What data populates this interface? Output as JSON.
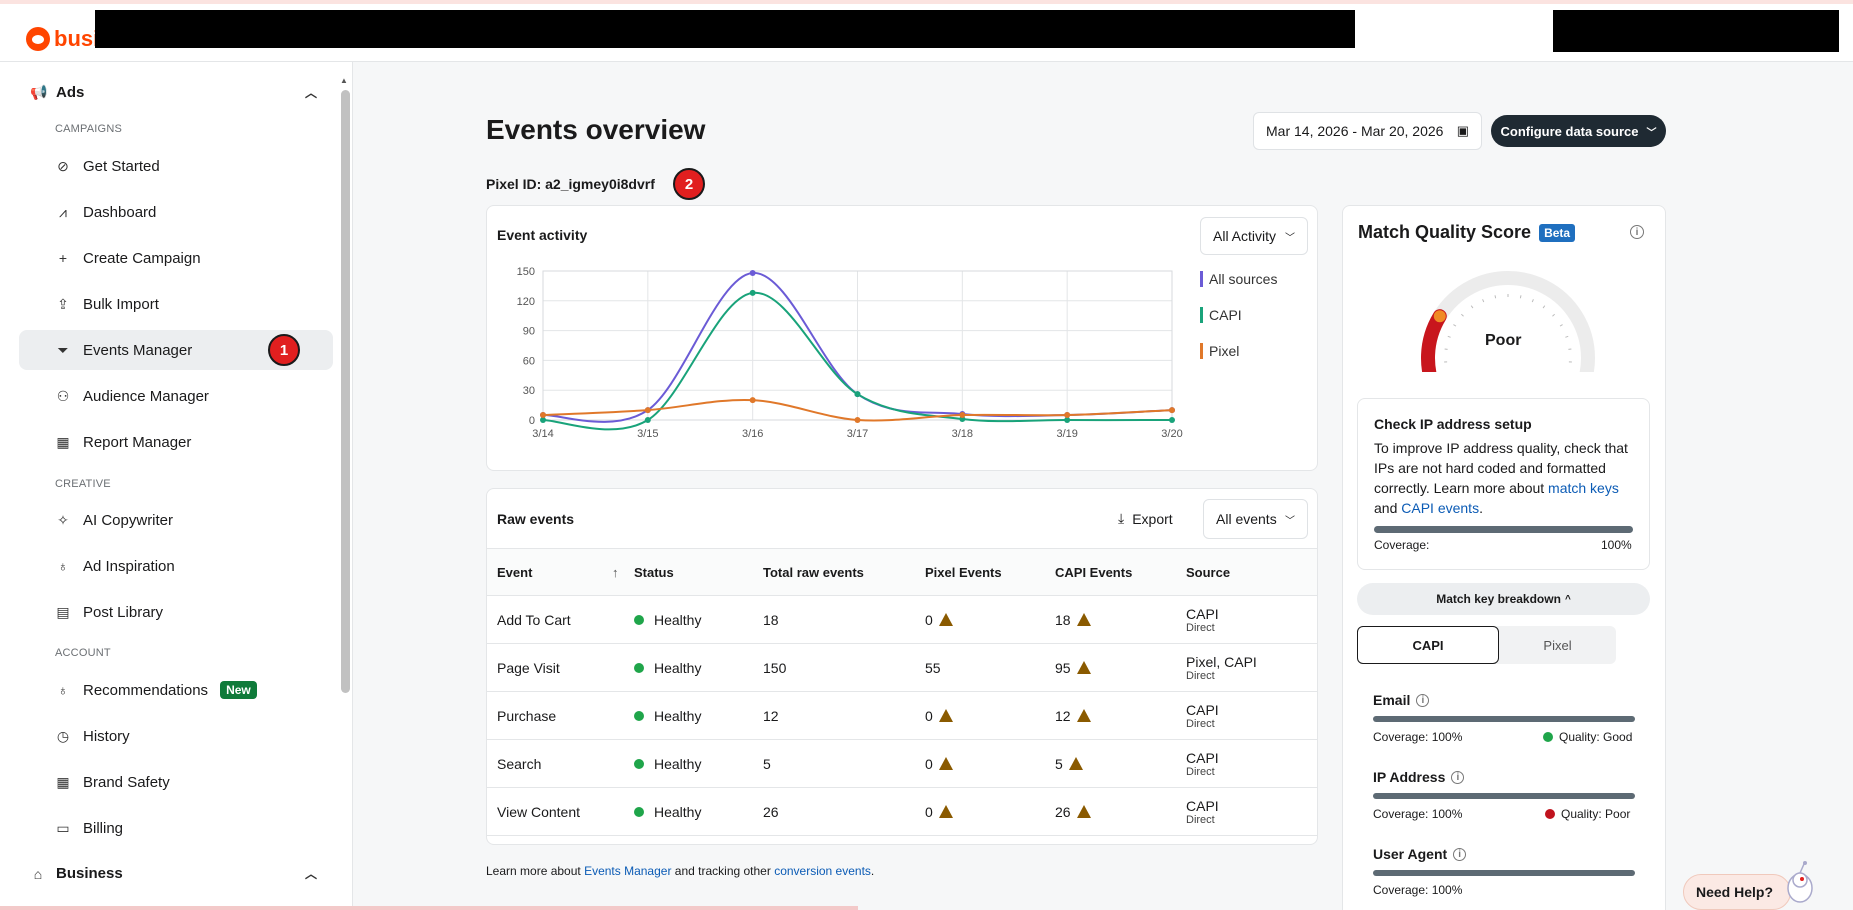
{
  "brand": {
    "logo_text": "business"
  },
  "sidebar": {
    "ads_section": "Ads",
    "business_section": "Business",
    "campaigns_cat": "CAMPAIGNS",
    "creative_cat": "CREATIVE",
    "account_cat": "ACCOUNT",
    "items": [
      {
        "label": "Get Started",
        "icon": "compass-icon"
      },
      {
        "label": "Dashboard",
        "icon": "chart-icon"
      },
      {
        "label": "Create Campaign",
        "icon": "plus-icon"
      },
      {
        "label": "Bulk Import",
        "icon": "upload-icon"
      },
      {
        "label": "Events Manager",
        "icon": "funnel-icon",
        "active": true
      },
      {
        "label": "Audience Manager",
        "icon": "people-icon"
      },
      {
        "label": "Report Manager",
        "icon": "table-icon"
      },
      {
        "label": "AI Copywriter",
        "icon": "sparkle-icon"
      },
      {
        "label": "Ad Inspiration",
        "icon": "bulb-icon"
      },
      {
        "label": "Post Library",
        "icon": "library-icon"
      },
      {
        "label": "Recommendations",
        "icon": "bulb-icon",
        "badge": "New"
      },
      {
        "label": "History",
        "icon": "clock-icon"
      },
      {
        "label": "Brand Safety",
        "icon": "grid-icon"
      },
      {
        "label": "Billing",
        "icon": "card-icon"
      }
    ]
  },
  "markers": {
    "one": "1",
    "two": "2"
  },
  "header": {
    "title": "Events overview",
    "pixel_id": "Pixel ID: a2_igmey0i8dvrf",
    "date_range": "Mar 14, 2026 - Mar 20, 2026",
    "configure_label": "Configure data source"
  },
  "activity": {
    "title": "Event activity",
    "filter": "All Activity"
  },
  "chart_data": {
    "type": "line",
    "title": "Event activity",
    "x": [
      "3/14",
      "3/15",
      "3/16",
      "3/17",
      "3/18",
      "3/19",
      "3/20"
    ],
    "ylim": [
      0,
      150
    ],
    "yticks": [
      0,
      30,
      60,
      90,
      120,
      150
    ],
    "grid": true,
    "legend": "right",
    "series": [
      {
        "name": "All sources",
        "color": "#6b5bd6",
        "values": [
          5,
          10,
          148,
          26,
          6,
          5,
          10
        ]
      },
      {
        "name": "CAPI",
        "color": "#19a37a",
        "values": [
          0,
          0,
          128,
          26,
          1,
          0,
          0
        ]
      },
      {
        "name": "Pixel",
        "color": "#e0782a",
        "values": [
          5,
          10,
          20,
          0,
          5,
          5,
          10
        ]
      }
    ]
  },
  "raw": {
    "title": "Raw events",
    "export_label": "Export",
    "filter": "All events",
    "columns": [
      "Event",
      "Status",
      "Total raw events",
      "Pixel Events",
      "CAPI Events",
      "Source"
    ],
    "rows": [
      {
        "event": "Add To Cart",
        "status": "Healthy",
        "total": "18",
        "pixel": "0",
        "pixel_warn": true,
        "capi": "18",
        "capi_warn": true,
        "source": "CAPI",
        "source_sub": "Direct"
      },
      {
        "event": "Page Visit",
        "status": "Healthy",
        "total": "150",
        "pixel": "55",
        "pixel_warn": false,
        "capi": "95",
        "capi_warn": true,
        "source": "Pixel, CAPI",
        "source_sub": "Direct"
      },
      {
        "event": "Purchase",
        "status": "Healthy",
        "total": "12",
        "pixel": "0",
        "pixel_warn": true,
        "capi": "12",
        "capi_warn": true,
        "source": "CAPI",
        "source_sub": "Direct"
      },
      {
        "event": "Search",
        "status": "Healthy",
        "total": "5",
        "pixel": "0",
        "pixel_warn": true,
        "capi": "5",
        "capi_warn": true,
        "source": "CAPI",
        "source_sub": "Direct"
      },
      {
        "event": "View Content",
        "status": "Healthy",
        "total": "26",
        "pixel": "0",
        "pixel_warn": true,
        "capi": "26",
        "capi_warn": true,
        "source": "CAPI",
        "source_sub": "Direct"
      }
    ]
  },
  "footer": {
    "prefix": "Learn more about ",
    "link1": "Events Manager",
    "middle": " and tracking other ",
    "link2": "conversion events",
    "suffix": "."
  },
  "match_quality": {
    "title": "Match Quality Score",
    "beta": "Beta",
    "score_label": "Poor",
    "gauge_fraction": 0.25,
    "check": {
      "title": "Check IP address setup",
      "text_prefix": "To improve IP address quality, check that IPs are not hard coded and formatted correctly. Learn more about ",
      "link1": "match keys",
      "text_mid": " and ",
      "link2": "CAPI events",
      "text_suffix": ".",
      "coverage_label": "Coverage:",
      "coverage_value": "100%"
    },
    "breakdown_label": "Match key breakdown",
    "tab_capi": "CAPI",
    "tab_pixel": "Pixel",
    "keys": [
      {
        "name": "Email",
        "coverage": "Coverage: 100%",
        "quality": "Quality: Good",
        "quality_color": "#1fa54a"
      },
      {
        "name": "IP Address",
        "coverage": "Coverage: 100%",
        "quality": "Quality: Poor",
        "quality_color": "#c0131e"
      },
      {
        "name": "User Agent",
        "coverage": "Coverage: 100%"
      }
    ]
  },
  "help": {
    "label": "Need Help?"
  }
}
